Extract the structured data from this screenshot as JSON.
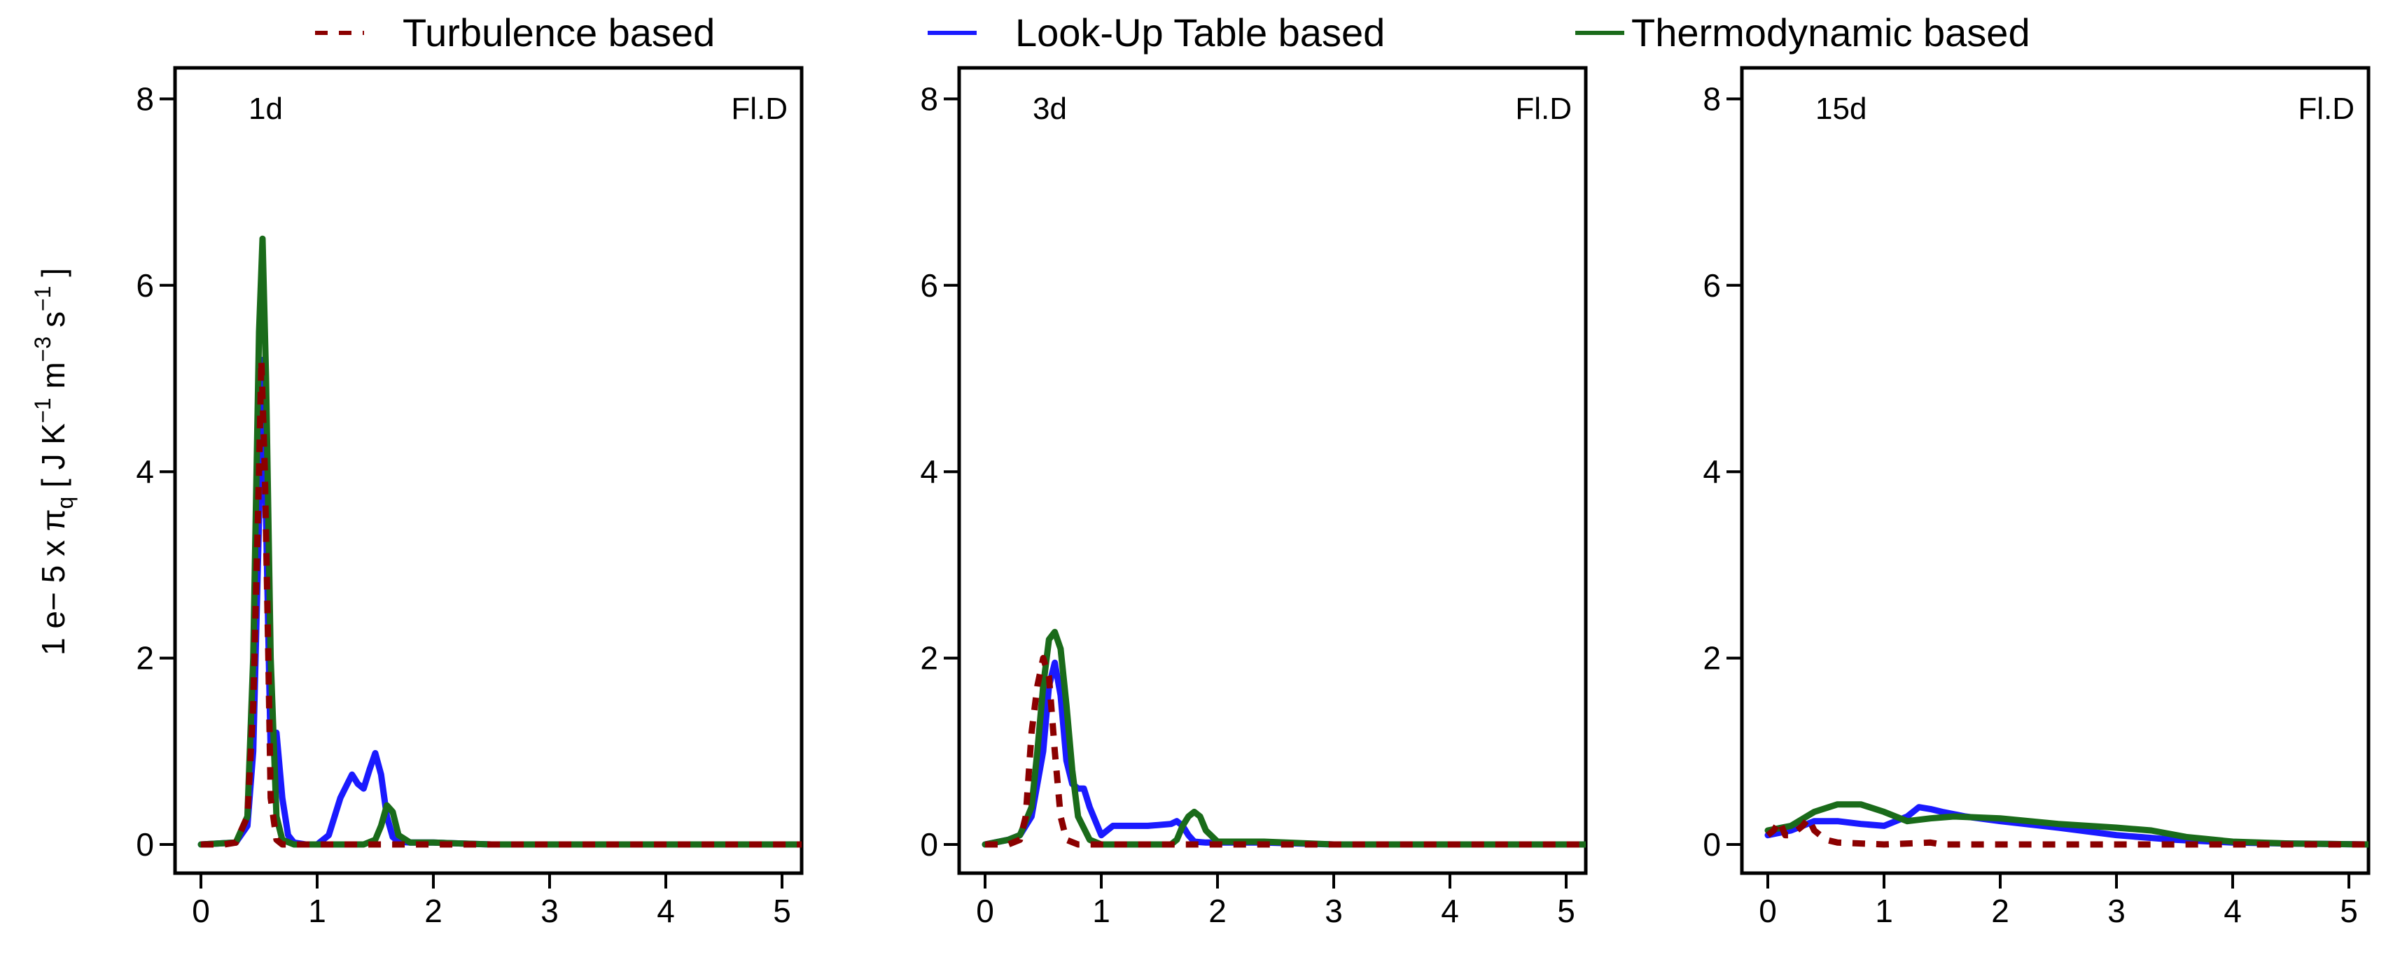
{
  "chart_data": {
    "type": "line",
    "ylabel": {
      "prefix": "1 e− 5 x π",
      "sub": "q",
      "bracket_open": " [ J K",
      "exp1": "−1",
      "m_text": " m",
      "exp2": "−3",
      "s_text": " s",
      "exp3": "−1",
      "bracket_close": " ]"
    },
    "legend": {
      "placement": "top",
      "entries": [
        {
          "name": "Turbulence based",
          "color": "#8b0000",
          "style": "dashed"
        },
        {
          "name": "Look-Up Table based",
          "color": "#1a1aff",
          "style": "solid"
        },
        {
          "name": "Thermodynamic based",
          "color": "#1a6b1a",
          "style": "solid"
        }
      ]
    },
    "xlim": [
      0,
      5.2
    ],
    "ylim": [
      0,
      8.3
    ],
    "x_ticks": [
      "0",
      "1",
      "2",
      "3",
      "4",
      "5"
    ],
    "y_ticks": [
      "0",
      "2",
      "4",
      "6",
      "8"
    ],
    "panels": [
      {
        "time_label": "1d",
        "case_label": "Fl.D",
        "series": [
          {
            "name": "Turbulence based",
            "x": [
              0,
              0.2,
              0.3,
              0.4,
              0.45,
              0.5,
              0.52,
              0.55,
              0.58,
              0.6,
              0.65,
              0.7,
              0.8,
              1.0,
              5.2
            ],
            "y": [
              0,
              0,
              0.02,
              0.3,
              1.5,
              4.0,
              5.2,
              4.0,
              2.0,
              0.5,
              0.05,
              0,
              0,
              0,
              0
            ]
          },
          {
            "name": "Look-Up Table based",
            "x": [
              0,
              0.3,
              0.4,
              0.45,
              0.5,
              0.53,
              0.56,
              0.6,
              0.62,
              0.65,
              0.7,
              0.75,
              0.8,
              0.9,
              1.0,
              1.1,
              1.2,
              1.3,
              1.35,
              1.4,
              1.45,
              1.5,
              1.55,
              1.6,
              1.65,
              1.7,
              1.8,
              2.0,
              2.5,
              5.2
            ],
            "y": [
              0,
              0.02,
              0.2,
              1.0,
              3.5,
              5.2,
              3.5,
              1.0,
              1.2,
              1.2,
              0.5,
              0.1,
              0.02,
              0,
              0,
              0.1,
              0.5,
              0.75,
              0.65,
              0.6,
              0.8,
              0.98,
              0.75,
              0.3,
              0.08,
              0.03,
              0.02,
              0.02,
              0,
              0
            ]
          },
          {
            "name": "Thermodynamic based",
            "x": [
              0,
              0.3,
              0.4,
              0.45,
              0.5,
              0.53,
              0.56,
              0.6,
              0.65,
              0.7,
              0.8,
              1.0,
              1.4,
              1.5,
              1.55,
              1.6,
              1.65,
              1.7,
              1.8,
              2.0,
              2.5,
              5.2
            ],
            "y": [
              0,
              0.02,
              0.3,
              2.0,
              5.5,
              6.5,
              5.0,
              2.0,
              0.3,
              0.05,
              0,
              0,
              0,
              0.05,
              0.2,
              0.42,
              0.35,
              0.1,
              0.02,
              0.02,
              0,
              0
            ]
          }
        ]
      },
      {
        "time_label": "3d",
        "case_label": "Fl.D",
        "series": [
          {
            "name": "Turbulence based",
            "x": [
              0,
              0.2,
              0.3,
              0.35,
              0.4,
              0.45,
              0.5,
              0.55,
              0.6,
              0.65,
              0.7,
              0.8,
              1.0,
              5.2
            ],
            "y": [
              0,
              0,
              0.05,
              0.3,
              1.2,
              1.7,
              2.0,
              1.8,
              1.0,
              0.3,
              0.05,
              0,
              0,
              0
            ]
          },
          {
            "name": "Look-Up Table based",
            "x": [
              0,
              0.2,
              0.3,
              0.4,
              0.5,
              0.55,
              0.6,
              0.65,
              0.7,
              0.75,
              0.8,
              0.85,
              0.9,
              1.0,
              1.1,
              1.2,
              1.4,
              1.6,
              1.65,
              1.7,
              1.75,
              1.8,
              1.9,
              2.0,
              2.4,
              3.0,
              5.2
            ],
            "y": [
              0,
              0.05,
              0.1,
              0.3,
              1.0,
              1.7,
              1.95,
              1.6,
              0.9,
              0.65,
              0.6,
              0.6,
              0.4,
              0.1,
              0.2,
              0.2,
              0.2,
              0.22,
              0.25,
              0.2,
              0.1,
              0.03,
              0.02,
              0.02,
              0.02,
              0,
              0
            ]
          },
          {
            "name": "Thermodynamic based",
            "x": [
              0,
              0.2,
              0.3,
              0.4,
              0.45,
              0.5,
              0.55,
              0.6,
              0.65,
              0.7,
              0.75,
              0.8,
              0.9,
              1.0,
              1.4,
              1.6,
              1.65,
              1.7,
              1.75,
              1.8,
              1.85,
              1.9,
              2.0,
              2.4,
              3.0,
              5.2
            ],
            "y": [
              0,
              0.05,
              0.1,
              0.4,
              1.0,
              1.7,
              2.2,
              2.28,
              2.1,
              1.5,
              0.8,
              0.3,
              0.05,
              0,
              0,
              0,
              0.05,
              0.2,
              0.3,
              0.35,
              0.3,
              0.15,
              0.03,
              0.03,
              0,
              0
            ]
          }
        ]
      },
      {
        "time_label": "15d",
        "case_label": "Fl.D",
        "series": [
          {
            "name": "Turbulence based",
            "x": [
              0,
              0.05,
              0.1,
              0.15,
              0.2,
              0.3,
              0.35,
              0.4,
              0.5,
              0.6,
              1.0,
              1.4,
              1.5,
              2.0,
              3.0,
              5.2
            ],
            "y": [
              0.1,
              0.15,
              0.25,
              0.1,
              0.1,
              0.2,
              0.28,
              0.15,
              0.05,
              0.02,
              0,
              0.02,
              0,
              0,
              0,
              0
            ]
          },
          {
            "name": "Look-Up Table based",
            "x": [
              0,
              0.2,
              0.4,
              0.6,
              0.8,
              1.0,
              1.2,
              1.3,
              1.4,
              1.5,
              1.7,
              2.0,
              2.5,
              3.0,
              3.5,
              4.0,
              4.5,
              5.2
            ],
            "y": [
              0.1,
              0.15,
              0.25,
              0.25,
              0.22,
              0.2,
              0.3,
              0.4,
              0.38,
              0.35,
              0.3,
              0.25,
              0.18,
              0.1,
              0.05,
              0.02,
              0.01,
              0
            ]
          },
          {
            "name": "Thermodynamic based",
            "x": [
              0,
              0.2,
              0.4,
              0.6,
              0.8,
              1.0,
              1.2,
              1.4,
              1.6,
              2.0,
              2.5,
              3.0,
              3.3,
              3.6,
              4.0,
              4.5,
              5.2
            ],
            "y": [
              0.15,
              0.2,
              0.35,
              0.43,
              0.43,
              0.35,
              0.25,
              0.28,
              0.3,
              0.28,
              0.22,
              0.18,
              0.15,
              0.08,
              0.03,
              0.01,
              0
            ]
          }
        ]
      }
    ]
  }
}
